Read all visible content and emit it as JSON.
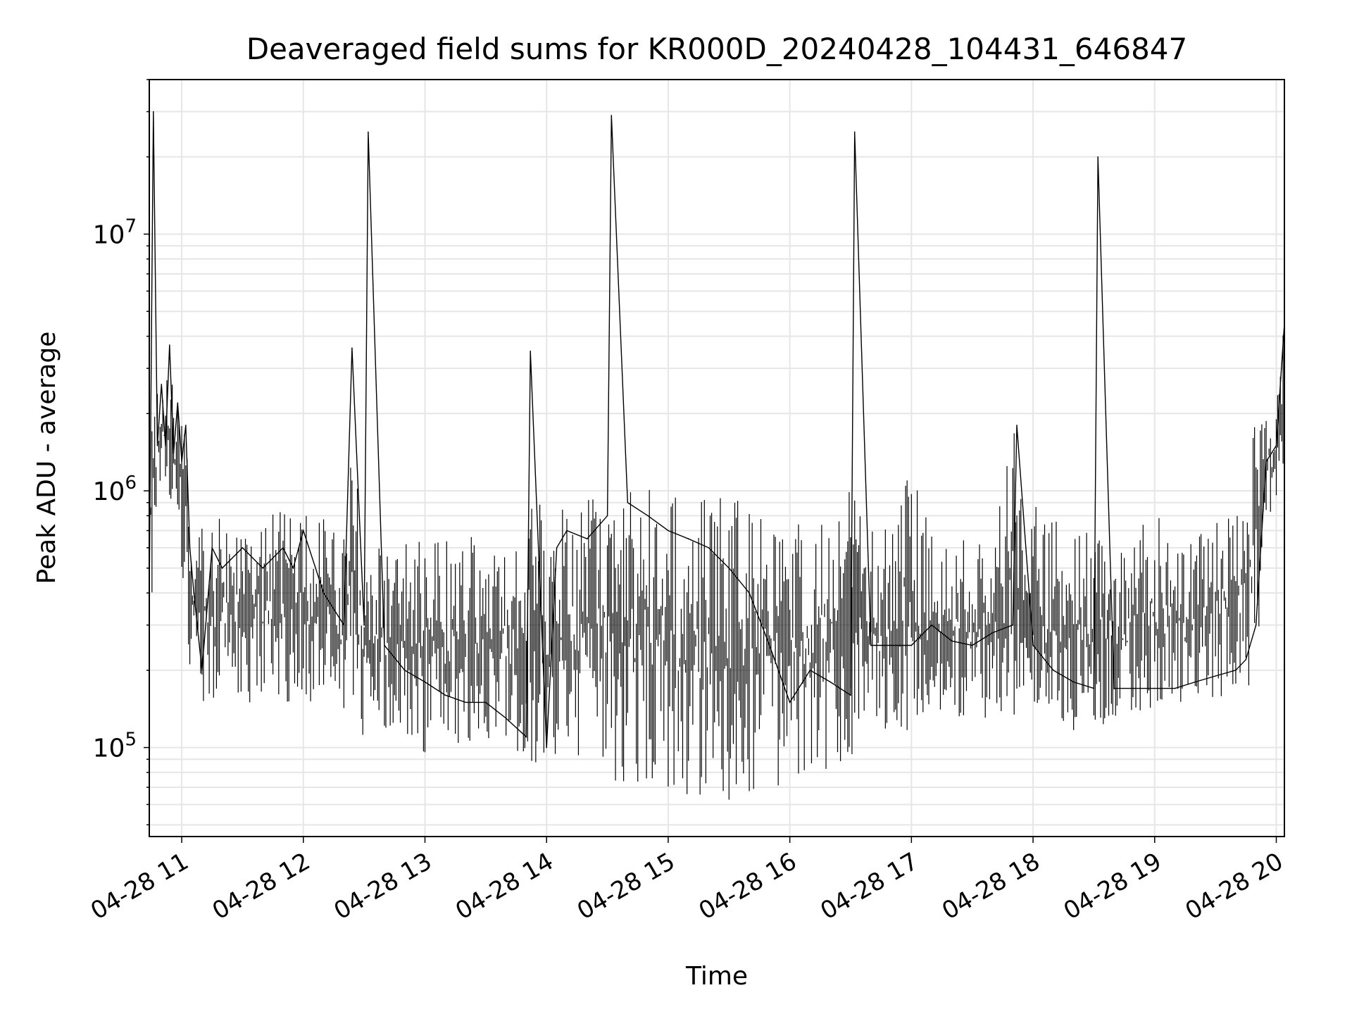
{
  "chart_data": {
    "type": "line",
    "title": "Deaveraged field sums for KR000D_20240428_104431_646847",
    "xlabel": "Time",
    "ylabel": "Peak ADU - average",
    "yscale": "log",
    "grid": true,
    "line_color": "#000000",
    "grid_color": "#e6e6e6",
    "xlim": [
      "2024-04-28 10:44",
      "2024-04-28 20:04"
    ],
    "ylim": [
      45000,
      40000000
    ],
    "x_ticks": [
      {
        "value": "2024-04-28 11:00",
        "label": "04-28 11"
      },
      {
        "value": "2024-04-28 12:00",
        "label": "04-28 12"
      },
      {
        "value": "2024-04-28 13:00",
        "label": "04-28 13"
      },
      {
        "value": "2024-04-28 14:00",
        "label": "04-28 14"
      },
      {
        "value": "2024-04-28 15:00",
        "label": "04-28 15"
      },
      {
        "value": "2024-04-28 16:00",
        "label": "04-28 16"
      },
      {
        "value": "2024-04-28 17:00",
        "label": "04-28 17"
      },
      {
        "value": "2024-04-28 18:00",
        "label": "04-28 18"
      },
      {
        "value": "2024-04-28 19:00",
        "label": "04-28 19"
      },
      {
        "value": "2024-04-28 20:00",
        "label": "04-28 20"
      }
    ],
    "y_ticks": [
      {
        "value": 100000,
        "base": "10",
        "exp": "5"
      },
      {
        "value": 1000000,
        "base": "10",
        "exp": "6"
      },
      {
        "value": 10000000,
        "base": "10",
        "exp": "7"
      }
    ],
    "series": [
      {
        "x": [
          "2024-04-28 10:44",
          "2024-04-28 10:46",
          "2024-04-28 10:48",
          "2024-04-28 10:50",
          "2024-04-28 10:52",
          "2024-04-28 10:54",
          "2024-04-28 10:56",
          "2024-04-28 10:58",
          "2024-04-28 11:00",
          "2024-04-28 11:02",
          "2024-04-28 11:04",
          "2024-04-28 11:06",
          "2024-04-28 11:10",
          "2024-04-28 11:15",
          "2024-04-28 11:20",
          "2024-04-28 11:30",
          "2024-04-28 11:40",
          "2024-04-28 11:50",
          "2024-04-28 11:55",
          "2024-04-28 12:00",
          "2024-04-28 12:10",
          "2024-04-28 12:20",
          "2024-04-28 12:24",
          "2024-04-28 12:30",
          "2024-04-28 12:32",
          "2024-04-28 12:40",
          "2024-04-28 12:50",
          "2024-04-28 13:00",
          "2024-04-28 13:10",
          "2024-04-28 13:20",
          "2024-04-28 13:30",
          "2024-04-28 13:40",
          "2024-04-28 13:50",
          "2024-04-28 13:52",
          "2024-04-28 14:00",
          "2024-04-28 14:05",
          "2024-04-28 14:10",
          "2024-04-28 14:20",
          "2024-04-28 14:30",
          "2024-04-28 14:32",
          "2024-04-28 14:40",
          "2024-04-28 14:50",
          "2024-04-28 15:00",
          "2024-04-28 15:10",
          "2024-04-28 15:20",
          "2024-04-28 15:30",
          "2024-04-28 15:40",
          "2024-04-28 15:50",
          "2024-04-28 16:00",
          "2024-04-28 16:10",
          "2024-04-28 16:20",
          "2024-04-28 16:30",
          "2024-04-28 16:32",
          "2024-04-28 16:40",
          "2024-04-28 16:50",
          "2024-04-28 17:00",
          "2024-04-28 17:10",
          "2024-04-28 17:20",
          "2024-04-28 17:30",
          "2024-04-28 17:40",
          "2024-04-28 17:50",
          "2024-04-28 17:52",
          "2024-04-28 18:00",
          "2024-04-28 18:10",
          "2024-04-28 18:20",
          "2024-04-28 18:30",
          "2024-04-28 18:32",
          "2024-04-28 18:40",
          "2024-04-28 18:50",
          "2024-04-28 19:00",
          "2024-04-28 19:10",
          "2024-04-28 19:20",
          "2024-04-28 19:30",
          "2024-04-28 19:40",
          "2024-04-28 19:45",
          "2024-04-28 19:50",
          "2024-04-28 19:55",
          "2024-04-28 20:00",
          "2024-04-28 20:04"
        ],
        "y": [
          400000,
          30000000,
          1500000,
          2600000,
          1500000,
          3700000,
          1400000,
          2200000,
          1300000,
          1800000,
          600000,
          400000,
          200000,
          600000,
          500000,
          600000,
          500000,
          600000,
          500000,
          700000,
          400000,
          300000,
          3600000,
          300000,
          25000000,
          250000,
          200000,
          180000,
          160000,
          150000,
          150000,
          130000,
          110000,
          3500000,
          100000,
          600000,
          700000,
          650000,
          800000,
          29000000,
          900000,
          800000,
          700000,
          650000,
          600000,
          500000,
          400000,
          250000,
          150000,
          200000,
          180000,
          160000,
          25000000,
          250000,
          250000,
          250000,
          300000,
          260000,
          250000,
          280000,
          300000,
          1800000,
          250000,
          200000,
          180000,
          170000,
          20000000,
          170000,
          170000,
          170000,
          170000,
          180000,
          190000,
          200000,
          220000,
          300000,
          1300000,
          1500000,
          4500000
        ],
        "range_low": [
          380000,
          380000,
          1000000,
          1000000,
          900000,
          900000,
          800000,
          700000,
          500000,
          350000,
          200000,
          170000,
          150000,
          150000,
          160000,
          150000,
          140000,
          150000,
          150000,
          150000,
          140000,
          130000,
          120000,
          110000,
          110000,
          105000,
          100000,
          95000,
          100000,
          105000,
          110000,
          100000,
          90000,
          85000,
          82000,
          80000,
          85000,
          80000,
          80000,
          75000,
          70000,
          70000,
          68000,
          62000,
          60000,
          62000,
          65000,
          68000,
          75000,
          80000,
          80000,
          82000,
          85000,
          110000,
          110000,
          115000,
          120000,
          125000,
          130000,
          130000,
          115000,
          110000,
          110000,
          110000,
          110000,
          120000,
          120000,
          130000,
          135000,
          140000,
          140000,
          145000,
          150000,
          160000,
          170000,
          180000,
          800000,
          850000,
          1000000
        ],
        "range_high": [
          1100000,
          2700000,
          2600000,
          2700000,
          2400000,
          3700000,
          2400000,
          2300000,
          2300000,
          2000000,
          900000,
          700000,
          800000,
          750000,
          800000,
          780000,
          800000,
          900000,
          850000,
          850000,
          800000,
          700000,
          1600000,
          600000,
          600000,
          600000,
          650000,
          700000,
          650000,
          800000,
          600000,
          620000,
          600000,
          2400000,
          500000,
          900000,
          950000,
          1000000,
          1050000,
          1050000,
          1100000,
          1050000,
          1000000,
          1000000,
          1000000,
          950000,
          900000,
          800000,
          700000,
          800000,
          900000,
          1000000,
          1000000,
          750000,
          700000,
          1300000,
          700000,
          650000,
          700000,
          700000,
          1800000,
          1500000,
          900000,
          800000,
          700000,
          750000,
          750000,
          600000,
          650000,
          900000,
          600000,
          650000,
          800000,
          850000,
          900000,
          2100000,
          2000000,
          2300000,
          4600000
        ]
      }
    ]
  }
}
